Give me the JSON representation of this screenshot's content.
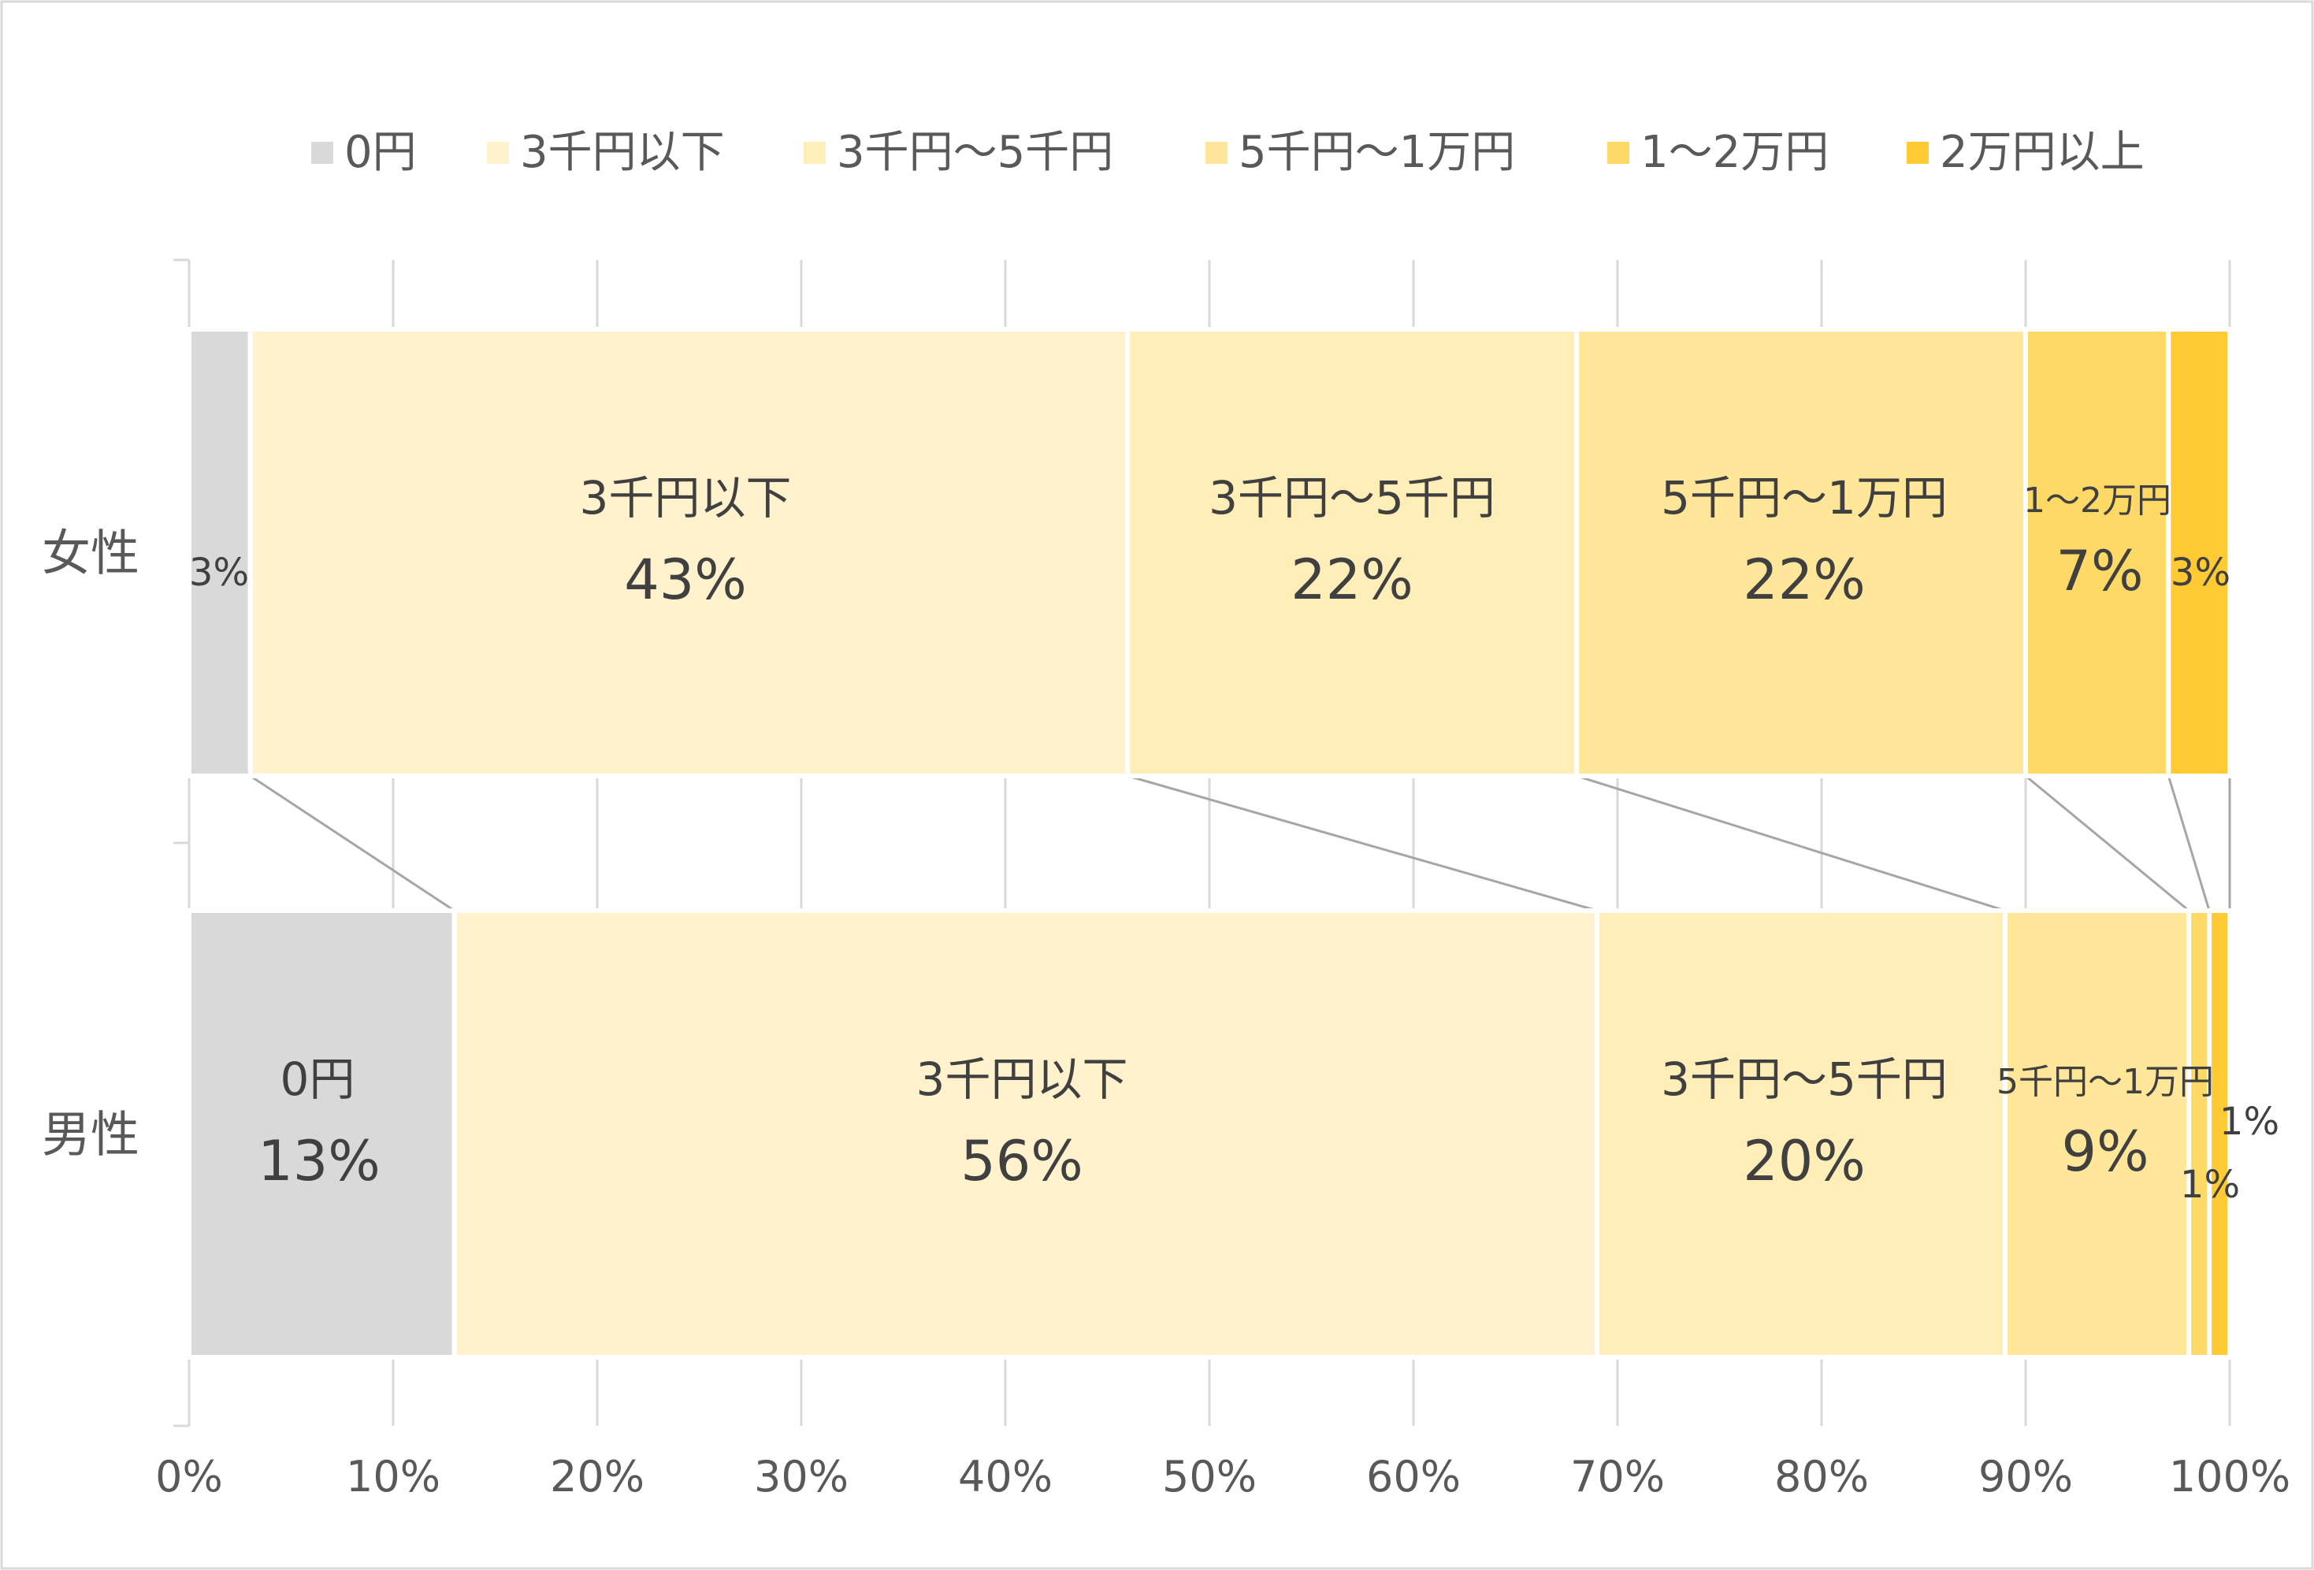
{
  "chart_data": {
    "type": "bar",
    "orientation": "horizontal",
    "stacked": "percent",
    "categories": [
      "女性",
      "男性"
    ],
    "series": [
      {
        "name": "0円",
        "values": [
          3,
          13
        ],
        "color": "#d9d9d9"
      },
      {
        "name": "3千円以下",
        "values": [
          43,
          56
        ],
        "color": "#fff2cc"
      },
      {
        "name": "3千円〜5千円",
        "values": [
          22,
          20
        ],
        "color": "#ffeeb8"
      },
      {
        "name": "5千円〜1万円",
        "values": [
          22,
          9
        ],
        "color": "#ffe699"
      },
      {
        "name": "1〜2万円",
        "values": [
          7,
          1
        ],
        "color": "#ffd966"
      },
      {
        "name": "2万円以上",
        "values": [
          3,
          1
        ],
        "color": "#ffca33"
      }
    ],
    "data_labels": [
      {
        "category": "女性",
        "series": "0円",
        "name": "",
        "value": "3%"
      },
      {
        "category": "女性",
        "series": "3千円以下",
        "name": "3千円以下",
        "value": "43%"
      },
      {
        "category": "女性",
        "series": "3千円〜5千円",
        "name": "3千円〜5千円",
        "value": "22%"
      },
      {
        "category": "女性",
        "series": "5千円〜1万円",
        "name": "5千円〜1万円",
        "value": "22%"
      },
      {
        "category": "女性",
        "series": "1〜2万円",
        "name": "1〜2万円",
        "value": "7%"
      },
      {
        "category": "女性",
        "series": "2万円以上",
        "name": "",
        "value": "3%"
      },
      {
        "category": "男性",
        "series": "0円",
        "name": "0円",
        "value": "13%"
      },
      {
        "category": "男性",
        "series": "3千円以下",
        "name": "3千円以下",
        "value": "56%"
      },
      {
        "category": "男性",
        "series": "3千円〜5千円",
        "name": "3千円〜5千円",
        "value": "20%"
      },
      {
        "category": "男性",
        "series": "5千円〜1万円",
        "name": "5千円〜1万円",
        "value": "9%"
      },
      {
        "category": "男性",
        "series": "1〜2万円",
        "name": "",
        "value": "1%"
      },
      {
        "category": "男性",
        "series": "2万円以上",
        "name": "",
        "value": "1%"
      }
    ],
    "x_ticks": [
      "0%",
      "10%",
      "20%",
      "30%",
      "40%",
      "50%",
      "60%",
      "70%",
      "80%",
      "90%",
      "100%"
    ],
    "xlim": [
      0,
      100
    ],
    "grid": true,
    "series_lines": true,
    "legend_position": "top",
    "title": "",
    "xlabel": "",
    "ylabel": ""
  }
}
